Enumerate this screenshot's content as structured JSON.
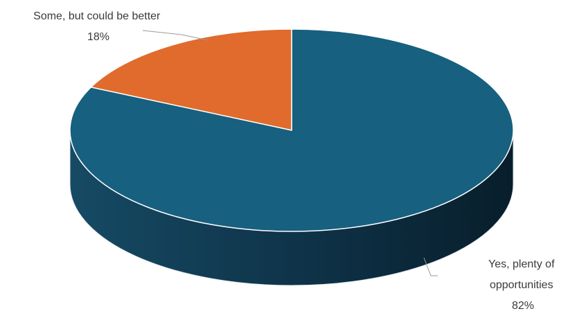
{
  "chart_data": {
    "type": "pie",
    "style": "3d",
    "categories": [
      "Yes, plenty of opportunities",
      "Some, but could be better"
    ],
    "values": [
      82,
      18
    ],
    "unit": "%",
    "colors": [
      "#17607f",
      "#e06b2d"
    ],
    "labels": [
      {
        "lines": [
          "Yes, plenty of",
          "opportunities"
        ],
        "pct": "82%"
      },
      {
        "lines": [
          "Some, but could be better"
        ],
        "pct": "18%"
      }
    ],
    "legend": "none"
  }
}
